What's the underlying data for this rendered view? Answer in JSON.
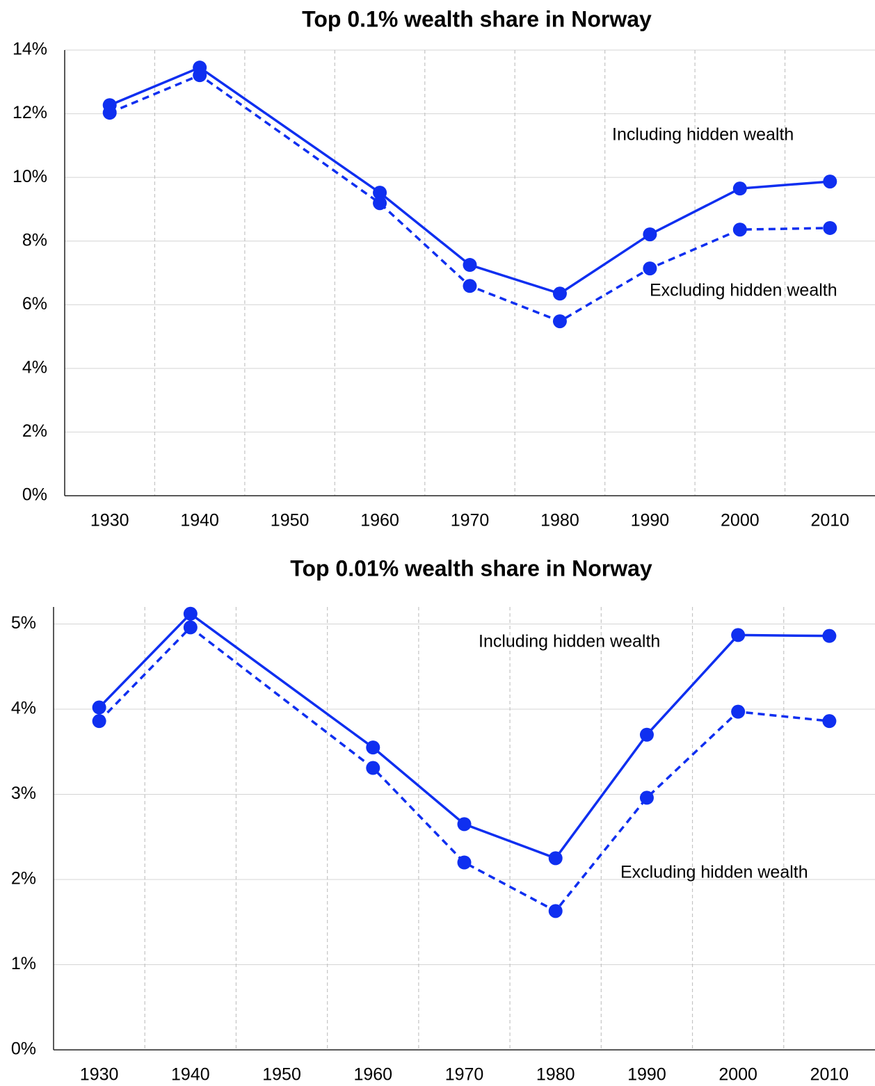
{
  "chart_data": [
    {
      "type": "line",
      "title": "Top 0.1% wealth share in Norway",
      "x": [
        1930,
        1940,
        1960,
        1970,
        1980,
        1990,
        2000,
        2010
      ],
      "series": [
        {
          "name": "Including hidden wealth",
          "color": "#0f2ff0",
          "style": "solid",
          "values": [
            12.27,
            13.45,
            9.52,
            7.25,
            6.35,
            8.21,
            9.65,
            9.87
          ]
        },
        {
          "name": "Excluding hidden wealth",
          "color": "#0f2ff0",
          "style": "dashed",
          "values": [
            12.03,
            13.21,
            9.19,
            6.59,
            5.48,
            7.14,
            8.36,
            8.41
          ]
        }
      ],
      "xlim": [
        1925,
        2015
      ],
      "xticks": [
        1930,
        1940,
        1950,
        1960,
        1970,
        1980,
        1990,
        2000,
        2010
      ],
      "ylim": [
        0,
        14
      ],
      "yticks": [
        {
          "value": 0,
          "label": "0%"
        },
        {
          "value": 2,
          "label": "2%"
        },
        {
          "value": 4,
          "label": "4%"
        },
        {
          "value": 6,
          "label": "6%"
        },
        {
          "value": 8,
          "label": "8%"
        },
        {
          "value": 10,
          "label": "10%"
        },
        {
          "value": 12,
          "label": "12%"
        },
        {
          "value": 14,
          "label": "14%"
        }
      ],
      "grid": true
    },
    {
      "type": "line",
      "title": "Top 0.01% wealth share in Norway",
      "x": [
        1930,
        1940,
        1960,
        1970,
        1980,
        1990,
        2000,
        2010
      ],
      "series": [
        {
          "name": "Including hidden wealth",
          "color": "#0f2ff0",
          "style": "solid",
          "values": [
            4.02,
            5.12,
            3.55,
            2.65,
            2.25,
            3.7,
            4.87,
            4.86
          ]
        },
        {
          "name": "Excluding hidden wealth",
          "color": "#0f2ff0",
          "style": "dashed",
          "values": [
            3.86,
            4.96,
            3.31,
            2.2,
            1.63,
            2.96,
            3.97,
            3.86
          ]
        }
      ],
      "xlim": [
        1925,
        2015
      ],
      "xticks": [
        1930,
        1940,
        1950,
        1960,
        1970,
        1980,
        1990,
        2000,
        2010
      ],
      "ylim": [
        0,
        5.2
      ],
      "yticks": [
        {
          "value": 0,
          "label": "0%"
        },
        {
          "value": 1,
          "label": "1%"
        },
        {
          "value": 2,
          "label": "2%"
        },
        {
          "value": 3,
          "label": "3%"
        },
        {
          "value": 4,
          "label": "4%"
        },
        {
          "value": 5,
          "label": "5%"
        }
      ],
      "grid": true
    }
  ]
}
